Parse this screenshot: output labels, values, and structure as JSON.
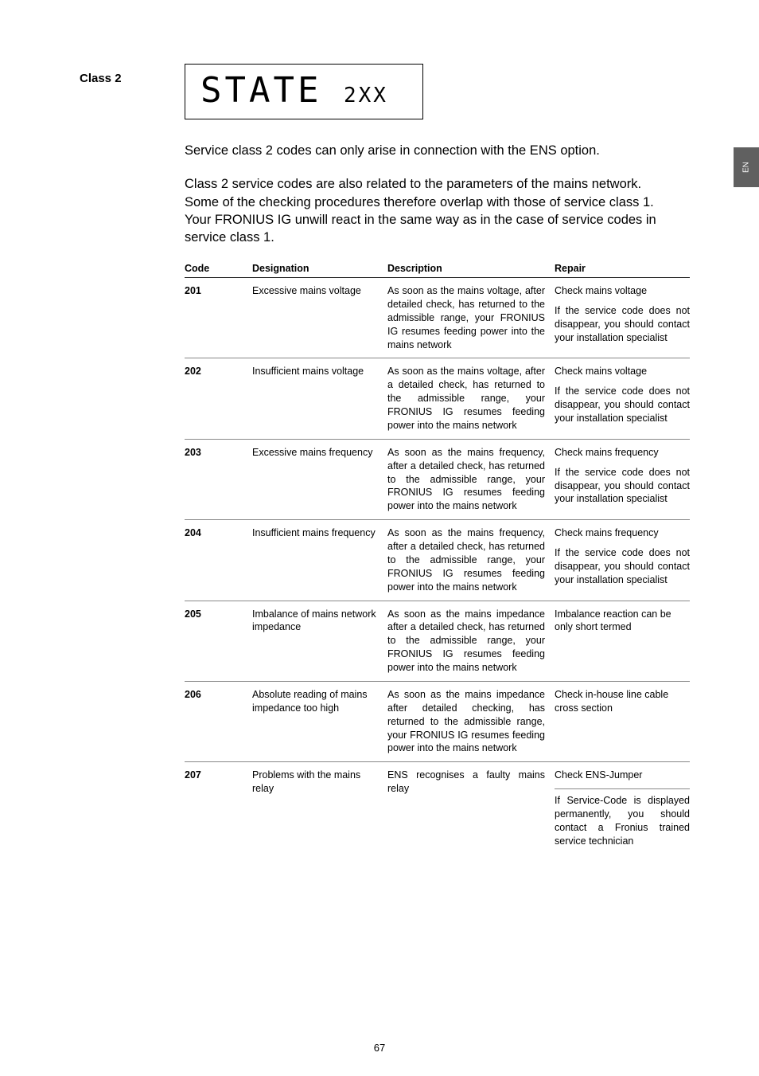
{
  "side_heading": "Class 2",
  "lcd": {
    "main": "STATE",
    "sub": "2XX"
  },
  "lang_tab": "EN",
  "intro_p1": "Service class 2 codes can only arise in connection with the ENS option.",
  "intro_p2": "Class 2 service codes are also related to the parameters of the mains network. Some of the checking procedures therefore overlap with those of service class 1. Your FRONIUS IG unwill react in the same way as in the case of service codes in service class 1.",
  "headers": {
    "code": "Code",
    "designation": "Designation",
    "description": "Description",
    "repair": "Repair"
  },
  "rows": [
    {
      "code": "201",
      "designation": "Excessive mains voltage",
      "description": "As soon as the mains voltage, after detailed check, has returned to the admissible range, your FRONIUS IG resumes feeding power into the mains network",
      "repair1": "Check mains voltage",
      "repair2": "If the service code does not disappear, you should contact your installation specialist"
    },
    {
      "code": "202",
      "designation": "Insufficient mains voltage",
      "description": "As soon as the mains voltage, after a detailed check, has returned to the admissible range, your FRONIUS IG resumes feeding power into the mains network",
      "repair1": "Check mains voltage",
      "repair2": "If the service code does not disappear, you should contact your installation specialist"
    },
    {
      "code": "203",
      "designation": "Excessive mains frequency",
      "description": "As soon as the mains frequency, after a detailed check, has returned to the admissible range, your FRONIUS IG resumes feeding power into the mains network",
      "repair1": "Check mains frequency",
      "repair2": "If the service code does not disappear, you should contact your installation specialist"
    },
    {
      "code": "204",
      "designation": "Insufficient mains frequency",
      "description": "As soon as the mains frequency, after a detailed check, has returned to the admissible range, your FRONIUS IG resumes feeding power into the mains network",
      "repair1": "Check mains frequency",
      "repair2": "If the service code does not disappear, you should contact your installation specialist"
    },
    {
      "code": "205",
      "designation": "Imbalance of mains network impedance",
      "description": "As soon as the mains impedance after a detailed check, has returned to the admissible range, your FRONIUS IG resumes feeding power into the mains network",
      "repair1": "Imbalance reaction can be only short termed",
      "repair2": ""
    },
    {
      "code": "206",
      "designation": "Absolute reading of mains impedance too high",
      "description": "As soon as the mains impedance after detailed checking, has returned to the admissible range, your FRONIUS IG resumes feeding power into the mains network",
      "repair1": "Check in-house line cable cross section",
      "repair2": ""
    },
    {
      "code": "207",
      "designation": "Problems with the mains relay",
      "description": "ENS recognises a faulty mains relay",
      "repair1": "Check ENS-Jumper",
      "repair2": "If Service-Code is displayed permanently, you should contact a Fronius trained service technician",
      "repair2_bordered": true
    }
  ],
  "page_number": "67",
  "colors": {
    "text": "#000000",
    "bg": "#ffffff",
    "tab_bg": "#606060",
    "tab_fg": "#ffffff",
    "rule": "#888888"
  }
}
